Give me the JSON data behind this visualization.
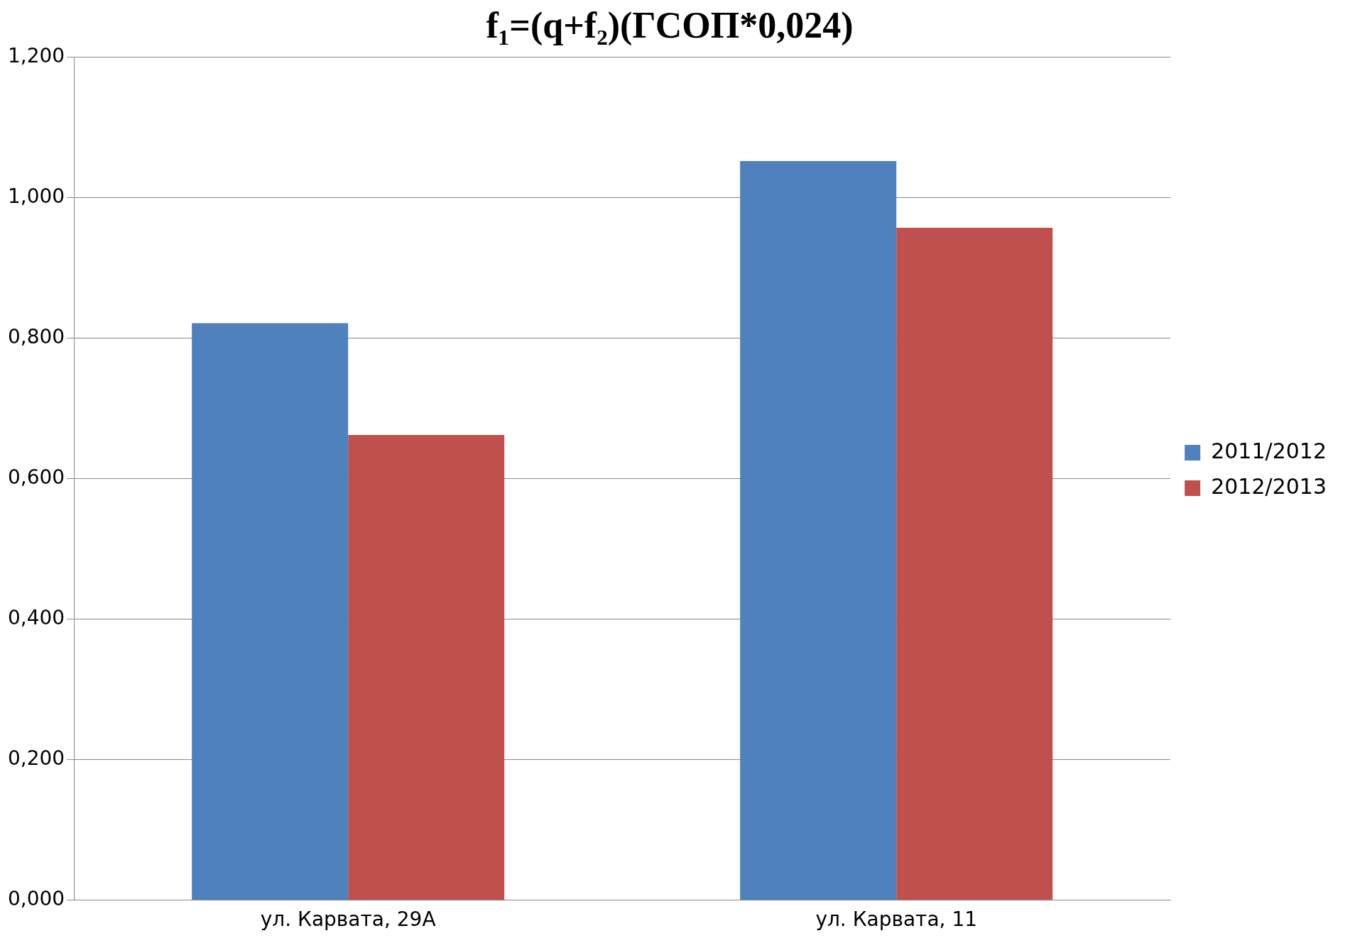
{
  "chart_data": {
    "type": "bar",
    "title": "f₁=(q+f₂)(ГСОП*0,024)",
    "categories": [
      "ул. Карвата, 29А",
      "ул. Карвата, 11"
    ],
    "series": [
      {
        "name": "2011/2012",
        "color": "#4f81bd",
        "values": [
          0.821,
          1.052
        ]
      },
      {
        "name": "2012/2013",
        "color": "#c0504d",
        "values": [
          0.662,
          0.957
        ]
      }
    ],
    "ylim": [
      0,
      1.2
    ],
    "yticks": [
      {
        "value": 0,
        "label": "0,000"
      },
      {
        "value": 0.2,
        "label": "0,200"
      },
      {
        "value": 0.4,
        "label": "0,400"
      },
      {
        "value": 0.6,
        "label": "0,600"
      },
      {
        "value": 0.8,
        "label": "0,800"
      },
      {
        "value": 1,
        "label": "1,000"
      },
      {
        "value": 1.2,
        "label": "1,200"
      }
    ],
    "grid": "y",
    "legend": "right"
  }
}
